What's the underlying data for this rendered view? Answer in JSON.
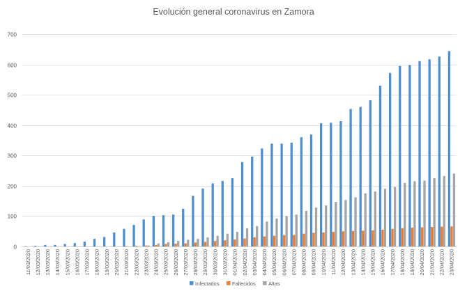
{
  "chart_data": {
    "type": "bar",
    "title": "Evolución general coronavirus en Zamora",
    "xlabel": "",
    "ylabel": "",
    "ylim": [
      0,
      700
    ],
    "yticks": [
      0,
      100,
      200,
      300,
      400,
      500,
      600,
      700
    ],
    "grid": true,
    "legend_position": "bottom",
    "categories": [
      "11/03/2020",
      "12/03/2020",
      "13/03/2020",
      "14/03/2020",
      "15/03/2020",
      "16/03/2020",
      "17/03/2020",
      "18/03/2020",
      "19/03/2020",
      "20/03/2020",
      "21/03/2020",
      "22/03/2020",
      "23/03/2020",
      "24/03/2020",
      "25/03/2020",
      "26/03/2020",
      "27/03/2020",
      "28/03/2020",
      "29/03/2020",
      "30/03/2020",
      "31/03/2020",
      "01/04/2020",
      "02/04/2020",
      "03/04/2020",
      "04/04/2020",
      "05/04/2020",
      "06/04/2020",
      "07/04/2020",
      "08/04/2020",
      "09/04/2020",
      "10/04/2020",
      "11/04/2020",
      "12/04/2020",
      "13/04/2020",
      "14/04/2020",
      "15/04/2020",
      "16/04/2020",
      "17/04/2020",
      "18/04/2020",
      "19/04/2020",
      "20/04/2020",
      "21/04/2020",
      "22/04/2020",
      "23/04/2020"
    ],
    "series": [
      {
        "name": "Infectados",
        "color": "#4e8fd0",
        "values": [
          1,
          2,
          5,
          5,
          8,
          11,
          16,
          25,
          31,
          46,
          58,
          71,
          89,
          101,
          103,
          105,
          124,
          167,
          191,
          208,
          216,
          225,
          278,
          296,
          323,
          339,
          339,
          342,
          360,
          369,
          406,
          408,
          413,
          453,
          460,
          482,
          530,
          572,
          595,
          598,
          611,
          617,
          626,
          644
        ]
      },
      {
        "name": "Fallecidos",
        "color": "#ed7d31",
        "values": [
          0,
          0,
          0,
          0,
          0,
          0,
          0,
          0,
          0,
          0,
          1,
          2,
          3,
          5,
          8,
          9,
          10,
          13,
          15,
          18,
          20,
          23,
          26,
          30,
          33,
          35,
          37,
          38,
          42,
          45,
          46,
          48,
          50,
          51,
          52,
          53,
          55,
          58,
          60,
          62,
          63,
          64,
          65,
          66
        ]
      },
      {
        "name": "Altas",
        "color": "#a5a5a5",
        "values": [
          0,
          0,
          0,
          0,
          0,
          0,
          0,
          0,
          0,
          0,
          0,
          1,
          3,
          10,
          14,
          18,
          22,
          25,
          30,
          35,
          42,
          48,
          60,
          67,
          82,
          92,
          100,
          105,
          117,
          128,
          135,
          147,
          153,
          162,
          175,
          181,
          190,
          196,
          209,
          215,
          217,
          225,
          232,
          240
        ]
      }
    ]
  }
}
